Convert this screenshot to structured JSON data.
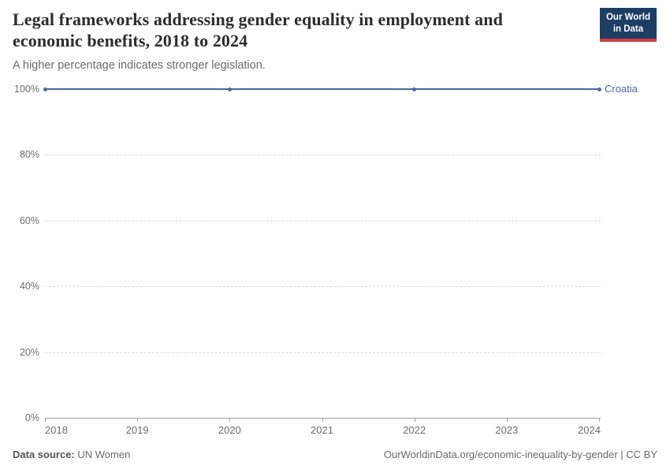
{
  "header": {
    "title": "Legal frameworks addressing gender equality in employment and economic benefits, 2018 to 2024",
    "subtitle": "A higher percentage indicates stronger legislation.",
    "logo": {
      "line1": "Our World",
      "line2": "in Data",
      "bg_color": "#1d3d63",
      "bar_color": "#cf3c3c"
    }
  },
  "chart_data": {
    "type": "line",
    "title": "Legal frameworks addressing gender equality in employment and economic benefits, 2018 to 2024",
    "subtitle": "A higher percentage indicates stronger legislation.",
    "x": [
      2018,
      2020,
      2022,
      2024
    ],
    "series": [
      {
        "name": "Croatia",
        "values": [
          100,
          100,
          100,
          100
        ],
        "color": "#4a69a4"
      }
    ],
    "xlabel": "",
    "ylabel": "",
    "xlim": [
      2018,
      2024
    ],
    "ylim": [
      0,
      100
    ],
    "x_tick_years": [
      2018,
      2019,
      2020,
      2021,
      2022,
      2023,
      2024
    ],
    "x_tick_labels": [
      "2018",
      "2019",
      "2020",
      "2021",
      "2022",
      "2023",
      "2024"
    ],
    "y_tick_values": [
      0,
      20,
      40,
      60,
      80,
      100
    ],
    "y_tick_labels": [
      "0%",
      "20%",
      "40%",
      "60%",
      "80%",
      "100%"
    ],
    "grid": "horizontal-dashed",
    "legend_position": "end-of-line"
  },
  "footer": {
    "datasource_label": "Data source:",
    "datasource_value": "UN Women",
    "attribution": "OurWorldinData.org/economic-inequality-by-gender | CC BY"
  }
}
